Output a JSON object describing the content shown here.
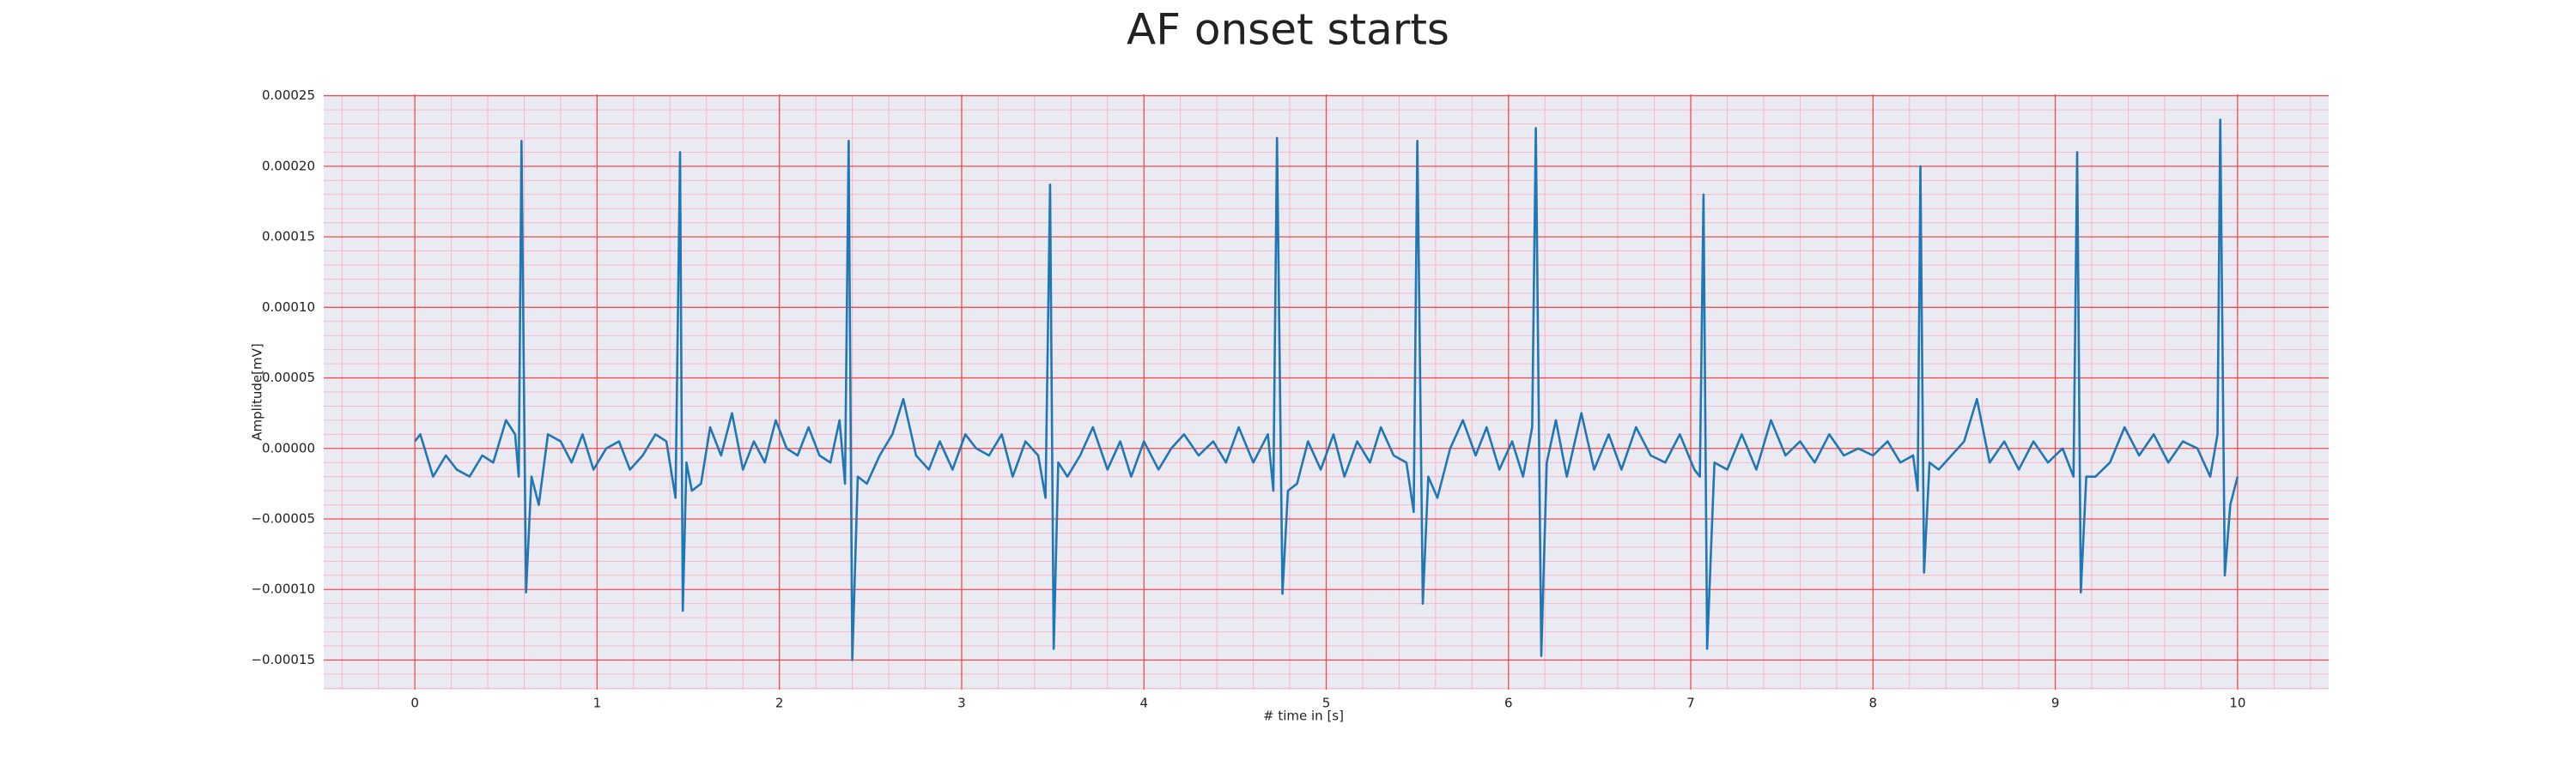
{
  "chart_data": {
    "type": "line",
    "title": "AF onset starts",
    "xlabel": "# time in [s]",
    "ylabel": "Amplitude[mV]",
    "color": "#1f77b4",
    "grid": true,
    "minor_grid": true,
    "grid_color": "#f24b4b",
    "minor_grid_color": "#f7b8c8",
    "background": "#eaeaf2",
    "xlim": [
      -0.5,
      10.5
    ],
    "xticks": [
      0,
      1,
      2,
      3,
      4,
      5,
      6,
      7,
      8,
      9,
      10
    ],
    "ylim": [
      -0.000171,
      0.000251
    ],
    "yticks": [
      {
        "value": -0.00015,
        "label": "−0.00015"
      },
      {
        "value": -0.0001,
        "label": "−0.00010"
      },
      {
        "value": -5e-05,
        "label": "−0.00005"
      },
      {
        "value": 0,
        "label": "0.00000"
      },
      {
        "value": 5e-05,
        "label": "0.00005"
      },
      {
        "value": 0.0001,
        "label": "0.00010"
      },
      {
        "value": 0.00015,
        "label": "0.00015"
      },
      {
        "value": 0.0002,
        "label": "0.00020"
      },
      {
        "value": 0.00025,
        "label": "0.00025"
      }
    ],
    "x": [
      0,
      0.03,
      0.1,
      0.17,
      0.23,
      0.3,
      0.37,
      0.43,
      0.5,
      0.55,
      0.57,
      0.585,
      0.61,
      0.64,
      0.68,
      0.73,
      0.8,
      0.86,
      0.92,
      0.98,
      1.05,
      1.12,
      1.18,
      1.25,
      1.32,
      1.38,
      1.43,
      1.455,
      1.47,
      1.49,
      1.52,
      1.57,
      1.62,
      1.68,
      1.74,
      1.8,
      1.86,
      1.92,
      1.98,
      2.04,
      2.1,
      2.16,
      2.22,
      2.28,
      2.33,
      2.36,
      2.38,
      2.4,
      2.43,
      2.48,
      2.55,
      2.62,
      2.68,
      2.75,
      2.82,
      2.88,
      2.95,
      3.02,
      3.08,
      3.15,
      3.22,
      3.28,
      3.35,
      3.42,
      3.46,
      3.485,
      3.505,
      3.53,
      3.58,
      3.65,
      3.72,
      3.8,
      3.87,
      3.93,
      4.0,
      4.08,
      4.15,
      4.22,
      4.3,
      4.38,
      4.45,
      4.52,
      4.6,
      4.68,
      4.71,
      4.73,
      4.76,
      4.79,
      4.84,
      4.9,
      4.97,
      5.04,
      5.1,
      5.17,
      5.24,
      5.3,
      5.37,
      5.44,
      5.48,
      5.5,
      5.53,
      5.56,
      5.61,
      5.68,
      5.75,
      5.82,
      5.88,
      5.95,
      6.02,
      6.08,
      6.13,
      6.15,
      6.18,
      6.21,
      6.26,
      6.32,
      6.4,
      6.47,
      6.55,
      6.62,
      6.7,
      6.78,
      6.86,
      6.94,
      7.02,
      7.05,
      7.07,
      7.09,
      7.13,
      7.2,
      7.28,
      7.36,
      7.44,
      7.52,
      7.6,
      7.68,
      7.76,
      7.84,
      7.92,
      8.0,
      8.08,
      8.15,
      8.22,
      8.245,
      8.26,
      8.28,
      8.31,
      8.36,
      8.43,
      8.5,
      8.57,
      8.64,
      8.72,
      8.8,
      8.88,
      8.96,
      9.04,
      9.1,
      9.12,
      9.14,
      9.17,
      9.22,
      9.3,
      9.38,
      9.46,
      9.54,
      9.62,
      9.7,
      9.78,
      9.85,
      9.89,
      9.905,
      9.93,
      9.96,
      10.0
    ],
    "values": [
      5e-06,
      1e-05,
      -2e-05,
      -5e-06,
      -1.5e-05,
      -2e-05,
      -5e-06,
      -1e-05,
      2e-05,
      1e-05,
      -2e-05,
      0.000218,
      -0.000102,
      -2e-05,
      -4e-05,
      1e-05,
      5e-06,
      -1e-05,
      1e-05,
      -1.5e-05,
      0,
      5e-06,
      -1.5e-05,
      -5e-06,
      1e-05,
      5e-06,
      -3.5e-05,
      0.00021,
      -0.000115,
      -1e-05,
      -3e-05,
      -2.5e-05,
      1.5e-05,
      -5e-06,
      2.5e-05,
      -1.5e-05,
      5e-06,
      -1e-05,
      2e-05,
      0,
      -5e-06,
      1.5e-05,
      -5e-06,
      -1e-05,
      2e-05,
      -2.5e-05,
      0.000218,
      -0.00015,
      -2e-05,
      -2.5e-05,
      -5e-06,
      1e-05,
      3.5e-05,
      -5e-06,
      -1.5e-05,
      5e-06,
      -1.5e-05,
      1e-05,
      0,
      -5e-06,
      1e-05,
      -2e-05,
      5e-06,
      -5e-06,
      -3.5e-05,
      0.000187,
      -0.000142,
      -1e-05,
      -2e-05,
      -5e-06,
      1.5e-05,
      -1.5e-05,
      5e-06,
      -2e-05,
      5e-06,
      -1.5e-05,
      0,
      1e-05,
      -5e-06,
      5e-06,
      -1e-05,
      1.5e-05,
      -1e-05,
      1e-05,
      -3e-05,
      0.00022,
      -0.000103,
      -3e-05,
      -2.5e-05,
      5e-06,
      -1.5e-05,
      1e-05,
      -2e-05,
      5e-06,
      -1e-05,
      1.5e-05,
      -5e-06,
      -1e-05,
      -4.5e-05,
      0.000218,
      -0.00011,
      -2e-05,
      -3.5e-05,
      0,
      2e-05,
      -5e-06,
      1.5e-05,
      -1.5e-05,
      5e-06,
      -2e-05,
      1.5e-05,
      0.000227,
      -0.000147,
      -1e-05,
      2e-05,
      -2e-05,
      2.5e-05,
      -1.5e-05,
      1e-05,
      -1.5e-05,
      1.5e-05,
      -5e-06,
      -1e-05,
      1e-05,
      -1.5e-05,
      -2e-05,
      0.00018,
      -0.000142,
      -1e-05,
      -1.5e-05,
      1e-05,
      -1.5e-05,
      2e-05,
      -5e-06,
      5e-06,
      -1e-05,
      1e-05,
      -5e-06,
      0,
      -5e-06,
      5e-06,
      -1e-05,
      -5e-06,
      -3e-05,
      0.0002,
      -8.8e-05,
      -1e-05,
      -1.5e-05,
      -5e-06,
      5e-06,
      3.5e-05,
      -1e-05,
      5e-06,
      -1.5e-05,
      5e-06,
      -1e-05,
      0,
      -2e-05,
      0.00021,
      -0.000102,
      -2e-05,
      -2e-05,
      -1e-05,
      1.5e-05,
      -5e-06,
      1e-05,
      -1e-05,
      5e-06,
      0,
      -2e-05,
      1e-05,
      0.000233,
      -9e-05,
      -4e-05,
      -2e-05
    ]
  }
}
